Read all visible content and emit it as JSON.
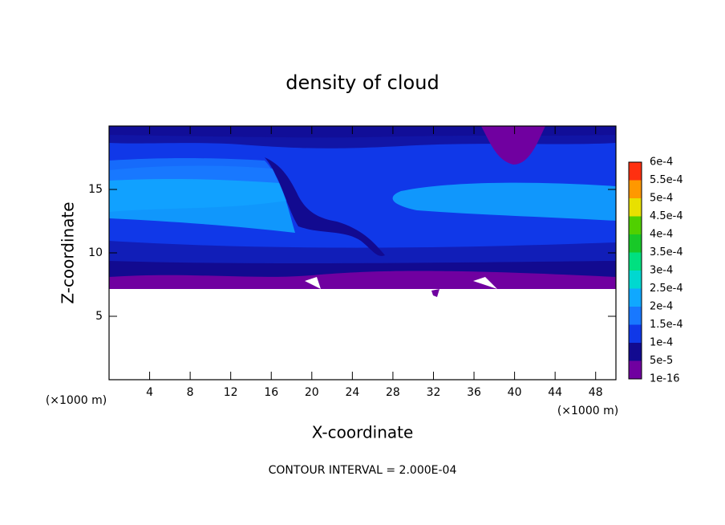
{
  "chart_data": {
    "type": "contour",
    "title": "density of cloud",
    "x_label": "X-coordinate",
    "y_label": "Z-coordinate",
    "x_unit": "(×1000 m)",
    "y_unit": "(×1000 m)",
    "footnote": "CONTOUR INTERVAL = 2.000E-04",
    "xlim": [
      0,
      50
    ],
    "ylim": [
      0,
      20
    ],
    "xticks": [
      4,
      8,
      12,
      16,
      20,
      24,
      28,
      32,
      36,
      40,
      44,
      48
    ],
    "yticks": [
      5,
      10,
      15
    ],
    "colorbar": {
      "levels": [
        {
          "value": 1e-16,
          "label": "1e-16"
        },
        {
          "value": 5e-05,
          "label": "5e-5"
        },
        {
          "value": 0.0001,
          "label": "1e-4"
        },
        {
          "value": 0.00015,
          "label": "1.5e-4"
        },
        {
          "value": 0.0002,
          "label": "2e-4"
        },
        {
          "value": 0.00025,
          "label": "2.5e-4"
        },
        {
          "value": 0.0003,
          "label": "3e-4"
        },
        {
          "value": 0.00035,
          "label": "3.5e-4"
        },
        {
          "value": 0.0004,
          "label": "4e-4"
        },
        {
          "value": 0.00045,
          "label": "4.5e-4"
        },
        {
          "value": 0.0005,
          "label": "5e-4"
        },
        {
          "value": 0.00055,
          "label": "5.5e-4"
        },
        {
          "value": 0.0006,
          "label": "6e-4"
        }
      ],
      "colors": [
        "#7000a0",
        "#120a90",
        "#1038e8",
        "#1878ff",
        "#10a8ff",
        "#00d8d0",
        "#00e080",
        "#18c828",
        "#50d000",
        "#e8e000",
        "#ff9800",
        "#ff3010"
      ]
    }
  }
}
